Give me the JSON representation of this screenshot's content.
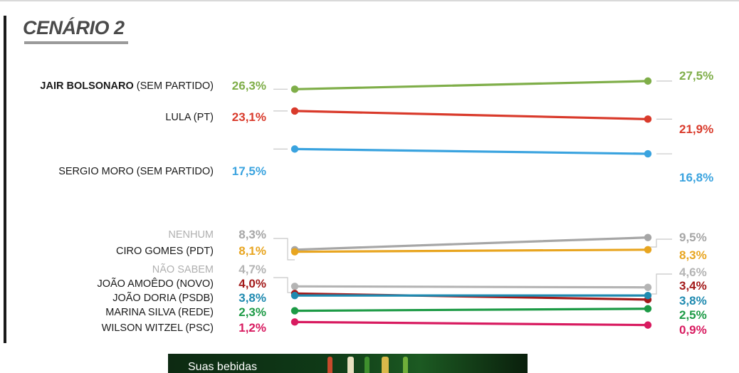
{
  "title": "CENÁRIO 2",
  "ad": {
    "text": "Suas bebidas"
  },
  "chart_data": {
    "type": "line",
    "title": "CENÁRIO 2",
    "xlabel": "",
    "ylabel": "",
    "categories": [
      "",
      ""
    ],
    "grid": false,
    "legend": "none",
    "series": [
      {
        "name": "JAIR BOLSONARO (SEM PARTIDO)",
        "values": [
          26.3,
          27.5
        ],
        "labels": [
          "26,3%",
          "27,5%"
        ],
        "color": "#7fae49"
      },
      {
        "name": "LULA (PT)",
        "values": [
          23.1,
          21.9
        ],
        "labels": [
          "23,1%",
          "21,9%"
        ],
        "color": "#d93a2b"
      },
      {
        "name": "SERGIO MORO (SEM PARTIDO)",
        "values": [
          17.5,
          16.8
        ],
        "labels": [
          "17,5%",
          "16,8%"
        ],
        "color": "#3aa3df"
      },
      {
        "name": "NENHUM",
        "values": [
          8.3,
          9.5
        ],
        "labels": [
          "8,3%",
          "9,5%"
        ],
        "color": "#a6a6a6"
      },
      {
        "name": "CIRO GOMES (PDT)",
        "values": [
          8.1,
          8.3
        ],
        "labels": [
          "8,1%",
          "8,3%"
        ],
        "color": "#e8a520"
      },
      {
        "name": "NÃO SABEM",
        "values": [
          4.7,
          4.6
        ],
        "labels": [
          "4,7%",
          "4,6%"
        ],
        "color": "#b4b4b4"
      },
      {
        "name": "JOÃO AMOÊDO (NOVO)",
        "values": [
          4.0,
          3.4
        ],
        "labels": [
          "4,0%",
          "3,4%"
        ],
        "color": "#a31a1a"
      },
      {
        "name": "JOÃO DORIA (PSDB)",
        "values": [
          3.8,
          3.8
        ],
        "labels": [
          "3,8%",
          "3,8%"
        ],
        "color": "#1f8ab0"
      },
      {
        "name": "MARINA SILVA (REDE)",
        "values": [
          2.3,
          2.5
        ],
        "labels": [
          "2,3%",
          "2,5%"
        ],
        "color": "#1c9a45"
      },
      {
        "name": "WILSON WITZEL (PSC)",
        "values": [
          1.2,
          0.9
        ],
        "labels": [
          "1,2%",
          "0,9%"
        ],
        "color": "#d81b60"
      }
    ]
  }
}
